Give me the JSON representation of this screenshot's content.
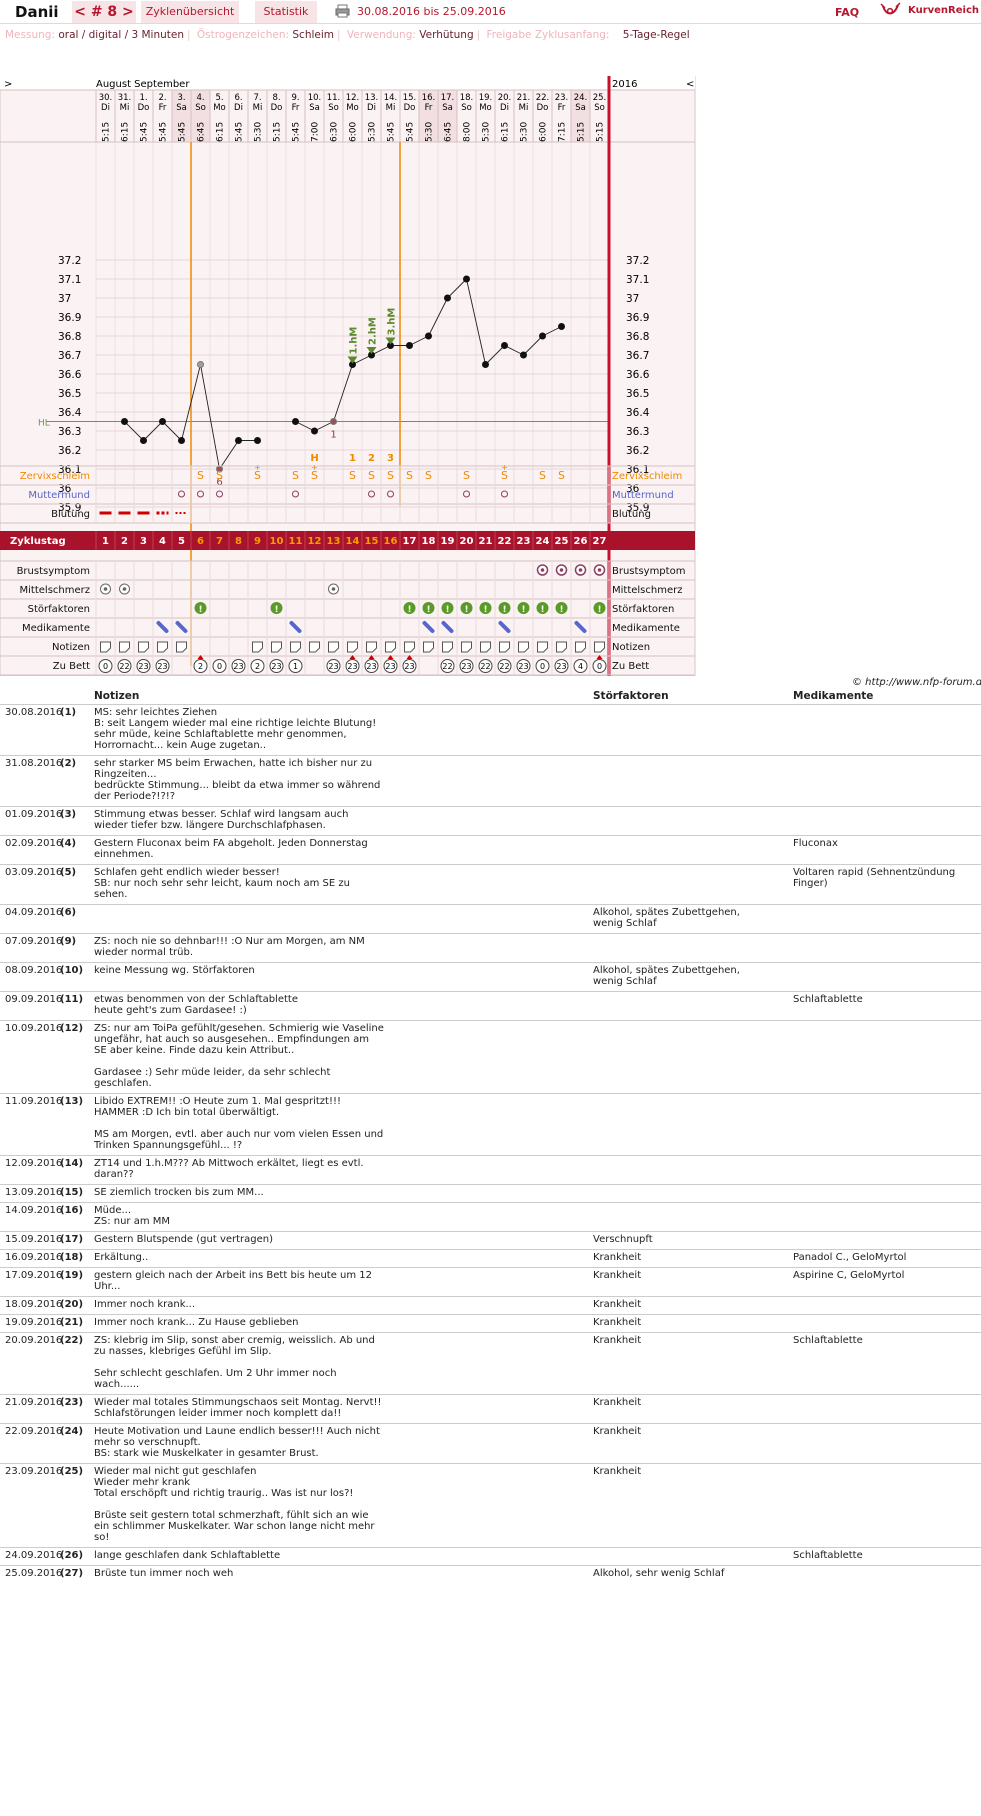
{
  "header": {
    "username": "Danii",
    "cycle_nav": "< # 8 >",
    "tabs": [
      "Zyklenübersicht",
      "Statistik"
    ],
    "period": "30.08.2016 bis 25.09.2016",
    "faq": "FAQ",
    "brand": "KurvenReich"
  },
  "info": {
    "messung_label": "Messung:",
    "messung_value": "oral / digital / 3 Minuten",
    "oestrogen_label": "Östrogenzeichen:",
    "oestrogen_value": "Schleim",
    "verwendung_label": "Verwendung:",
    "verwendung_value": "Verhütung",
    "freigabe_label": "Freigabe Zyklusanfang:",
    "freigabe_value": "5-Tage-Regel"
  },
  "chart_data": {
    "type": "line",
    "title": "",
    "months_left": "August  September",
    "year_right": "2016",
    "arrow_left": ">",
    "arrow_right": "<",
    "dates": [
      "30.",
      "31.",
      "1.",
      "2.",
      "3.",
      "4.",
      "5.",
      "6.",
      "7.",
      "8.",
      "9.",
      "10.",
      "11.",
      "12.",
      "13.",
      "14.",
      "15.",
      "16.",
      "17.",
      "18.",
      "19.",
      "20.",
      "21.",
      "22.",
      "23.",
      "24.",
      "25."
    ],
    "weekdays": [
      "Di",
      "Mi",
      "Do",
      "Fr",
      "Sa",
      "So",
      "Mo",
      "Di",
      "Mi",
      "Do",
      "Fr",
      "Sa",
      "So",
      "Mo",
      "Di",
      "Mi",
      "Do",
      "Fr",
      "Sa",
      "So",
      "Mo",
      "Di",
      "Mi",
      "Do",
      "Fr",
      "Sa",
      "So"
    ],
    "times": [
      "5:15",
      "6:15",
      "5:45",
      "5:45",
      "5:45",
      "6:45",
      "6:15",
      "5:45",
      "5:30",
      "5:15",
      "5:45",
      "7:00",
      "6:30",
      "6:00",
      "5:30",
      "5:45",
      "5:45",
      "5:30",
      "6:45",
      "8:00",
      "5:30",
      "6:15",
      "5:30",
      "6:00",
      "7:15",
      "5:15",
      "5:15"
    ],
    "weekend_cols": [
      5,
      6,
      18,
      19,
      26
    ],
    "y_ticks": [
      37.2,
      37.1,
      37.0,
      36.9,
      36.8,
      36.7,
      36.6,
      36.5,
      36.4,
      36.3,
      36.2,
      36.1,
      36.0,
      35.9
    ],
    "y_tick_labels": [
      "37.2",
      "37.1",
      "37",
      "36.9",
      "36.8",
      "36.7",
      "36.6",
      "36.5",
      "36.4",
      "36.3",
      "36.2",
      "36.1",
      "36",
      "35.9"
    ],
    "ylim": [
      35.9,
      37.2
    ],
    "temperatures": [
      null,
      36.35,
      36.25,
      36.35,
      36.25,
      36.65,
      36.1,
      36.25,
      36.25,
      null,
      36.35,
      36.3,
      36.35,
      36.65,
      36.7,
      36.75,
      36.75,
      36.8,
      37.0,
      37.1,
      36.65,
      36.75,
      36.7,
      36.8,
      36.85,
      null,
      null
    ],
    "excluded_days": [
      6,
      7,
      13
    ],
    "hl_value": 36.35,
    "hl_label": "HL",
    "day_markers": [
      {
        "day": 7,
        "label": "6"
      },
      {
        "day": 13,
        "label": "1"
      }
    ],
    "hm_markers": [
      {
        "day": 14,
        "label": "1.hM"
      },
      {
        "day": 15,
        "label": "2.hM"
      },
      {
        "day": 16,
        "label": "3.hM"
      }
    ],
    "top_labels": [
      {
        "day": 12,
        "label": "H"
      },
      {
        "day": 14,
        "label": "1"
      },
      {
        "day": 15,
        "label": "2"
      },
      {
        "day": 16,
        "label": "3"
      }
    ],
    "cycle_start_day": 6,
    "evaluation_end_day": 17,
    "zyklustag_label": "Zyklustag",
    "row_labels": [
      "Zervixschleim",
      "Muttermund",
      "Blutung",
      "Brustsymptom",
      "Mittelschmerz",
      "Störfaktoren",
      "Medikamente",
      "Notizen",
      "Zu Bett"
    ],
    "zervix": {
      "6": "S",
      "7": "S",
      "9": "S+",
      "11": "S",
      "12": "S+",
      "14": "S",
      "15": "S",
      "16": "S",
      "17": "S",
      "18": "S",
      "20": "S",
      "22": "S+",
      "24": "S",
      "25": "S"
    },
    "muttermund": [
      5,
      6,
      7,
      11,
      15,
      16,
      20,
      22
    ],
    "bleeding": {
      "1": "heavy",
      "2": "heavy",
      "3": "heavy",
      "4": "medium",
      "5": "light"
    },
    "brust": [
      24,
      25,
      26,
      27
    ],
    "mittelschmerz": [
      1,
      2,
      13
    ],
    "stoerfaktoren": [
      6,
      10,
      17,
      18,
      19,
      20,
      21,
      22,
      23,
      24,
      25,
      27
    ],
    "medikamente": [
      4,
      5,
      11,
      18,
      19,
      22,
      26
    ],
    "notizen": [
      1,
      2,
      3,
      4,
      5,
      9,
      10,
      11,
      12,
      13,
      14,
      15,
      16,
      17,
      18,
      19,
      20,
      21,
      22,
      23,
      24,
      25,
      26,
      27
    ],
    "bett": {
      "1": "0",
      "2": "22",
      "3": "23",
      "4": "23",
      "6": "2",
      "7": "0",
      "8": "23",
      "9": "2",
      "10": "23",
      "11": "1",
      "13": "23",
      "14": "23",
      "15": "23",
      "16": "23",
      "17": "23",
      "19": "22",
      "20": "23",
      "21": "22",
      "22": "22",
      "23": "23",
      "24": "0",
      "25": "23",
      "26": "4",
      "27": "0"
    },
    "bett_arrows": [
      6,
      14,
      15,
      16,
      17,
      27
    ]
  },
  "copyright": "© http://www.nfp-forum.de",
  "notes_header": {
    "notizen": "Notizen",
    "stor": "Störfaktoren",
    "med": "Medikamente"
  },
  "notes": [
    {
      "date": "30.08.2016",
      "num": "(1)",
      "note": "MS: sehr leichtes Ziehen\nB: seit Langem wieder mal eine richtige leichte Blutung!\nsehr müde, keine Schlaftablette mehr genommen, Horrornacht... kein Auge zugetan..",
      "stor": "",
      "med": ""
    },
    {
      "date": "31.08.2016",
      "num": "(2)",
      "note": "sehr starker MS beim Erwachen, hatte ich bisher nur zu Ringzeiten...\nbedrückte Stimmung... bleibt da etwa immer so während der Periode?!?!?",
      "stor": "",
      "med": ""
    },
    {
      "date": "01.09.2016",
      "num": "(3)",
      "note": "Stimmung etwas besser. Schlaf wird langsam auch wieder tiefer bzw. längere Durchschlafphasen.",
      "stor": "",
      "med": ""
    },
    {
      "date": "02.09.2016",
      "num": "(4)",
      "note": "Gestern Fluconax beim FA abgeholt. Jeden Donnerstag einnehmen.",
      "stor": "",
      "med": "Fluconax"
    },
    {
      "date": "03.09.2016",
      "num": "(5)",
      "note": "Schlafen geht endlich wieder besser!\nSB: nur noch sehr sehr leicht, kaum noch am SE zu sehen.",
      "stor": "",
      "med": "Voltaren rapid (Sehnentzündung Finger)"
    },
    {
      "date": "04.09.2016",
      "num": "(6)",
      "note": "",
      "stor": "Alkohol, spätes Zubettgehen, wenig Schlaf",
      "med": ""
    },
    {
      "date": "07.09.2016",
      "num": "(9)",
      "note": "ZS: noch nie so dehnbar!!! :O Nur am Morgen, am NM wieder normal trüb.",
      "stor": "",
      "med": ""
    },
    {
      "date": "08.09.2016",
      "num": "(10)",
      "note": "keine Messung wg. Störfaktoren",
      "stor": "Alkohol, spätes Zubettgehen, wenig Schlaf",
      "med": ""
    },
    {
      "date": "09.09.2016",
      "num": "(11)",
      "note": "etwas benommen von der Schlaftablette\nheute geht's zum Gardasee! :)",
      "stor": "",
      "med": "Schlaftablette"
    },
    {
      "date": "10.09.2016",
      "num": "(12)",
      "note": "ZS: nur am ToiPa gefühlt/gesehen. Schmierig wie Vaseline ungefähr, hat auch so ausgesehen.. Empfindungen am SE aber keine. Finde dazu kein Attribut..\n\nGardasee :) Sehr müde leider, da sehr schlecht geschlafen.",
      "stor": "",
      "med": ""
    },
    {
      "date": "11.09.2016",
      "num": "(13)",
      "note": "Libido EXTREM!! :O Heute zum 1. Mal gespritzt!!! HAMMER :D Ich bin total überwältigt.\n\nMS am Morgen, evtl. aber auch nur vom vielen Essen und Trinken Spannungsgefühl... !?",
      "stor": "",
      "med": ""
    },
    {
      "date": "12.09.2016",
      "num": "(14)",
      "note": "ZT14 und 1.h.M??? Ab Mittwoch erkältet, liegt es evtl. daran??",
      "stor": "",
      "med": ""
    },
    {
      "date": "13.09.2016",
      "num": "(15)",
      "note": "SE ziemlich trocken bis zum MM...",
      "stor": "",
      "med": ""
    },
    {
      "date": "14.09.2016",
      "num": "(16)",
      "note": "Müde...\nZS: nur am MM",
      "stor": "",
      "med": ""
    },
    {
      "date": "15.09.2016",
      "num": "(17)",
      "note": "Gestern Blutspende (gut vertragen)",
      "stor": "Verschnupft",
      "med": ""
    },
    {
      "date": "16.09.2016",
      "num": "(18)",
      "note": "Erkältung..",
      "stor": "Krankheit",
      "med": "Panadol C., GeloMyrtol"
    },
    {
      "date": "17.09.2016",
      "num": "(19)",
      "note": "gestern gleich nach der Arbeit ins Bett bis heute um 12 Uhr...",
      "stor": "Krankheit",
      "med": "Aspirine C, GeloMyrtol"
    },
    {
      "date": "18.09.2016",
      "num": "(20)",
      "note": "Immer noch krank...",
      "stor": "Krankheit",
      "med": ""
    },
    {
      "date": "19.09.2016",
      "num": "(21)",
      "note": "Immer noch krank... Zu Hause geblieben",
      "stor": "Krankheit",
      "med": ""
    },
    {
      "date": "20.09.2016",
      "num": "(22)",
      "note": "ZS: klebrig im Slip, sonst aber cremig, weisslich. Ab und zu nasses, klebriges Gefühl im Slip.\n\nSehr schlecht geschlafen. Um 2 Uhr immer noch wach......",
      "stor": "Krankheit",
      "med": "Schlaftablette"
    },
    {
      "date": "21.09.2016",
      "num": "(23)",
      "note": "Wieder mal totales Stimmungschaos seit Montag. Nervt!! Schlafstörungen leider immer noch komplett da!!",
      "stor": "Krankheit",
      "med": ""
    },
    {
      "date": "22.09.2016",
      "num": "(24)",
      "note": "Heute Motivation und Laune endlich besser!!! Auch nicht mehr so verschnupft.\nBS: stark wie Muskelkater in gesamter Brust.",
      "stor": "Krankheit",
      "med": ""
    },
    {
      "date": "23.09.2016",
      "num": "(25)",
      "note": "Wieder mal nicht gut geschlafen\nWieder mehr krank\nTotal erschöpft und richtig traurig.. Was ist nur los?!\n\nBrüste seit gestern total schmerzhaft, fühlt sich an wie ein schlimmer Muskelkater. War schon lange nicht mehr so!",
      "stor": "Krankheit",
      "med": ""
    },
    {
      "date": "24.09.2016",
      "num": "(26)",
      "note": "lange geschlafen dank Schlaftablette",
      "stor": "",
      "med": "Schlaftablette"
    },
    {
      "date": "25.09.2016",
      "num": "(27)",
      "note": "Brüste tun immer noch weh",
      "stor": "Alkohol, sehr wenig Schlaf",
      "med": ""
    }
  ],
  "colors": {
    "brand": "#b5172e",
    "orange": "#f08a00",
    "green": "#5a8a2a",
    "blue": "#5566cc",
    "grid": "#e8d2d4",
    "bg_pink": "#fbf2f3"
  }
}
